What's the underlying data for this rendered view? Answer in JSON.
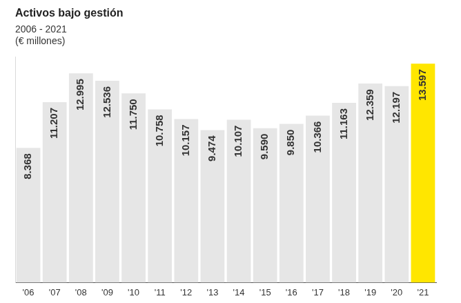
{
  "chart_data": {
    "type": "bar",
    "title": "Activos bajo gestión",
    "subtitle": [
      "2006 - 2021",
      "(€ millones)"
    ],
    "categories": [
      "'06",
      "'07",
      "'08",
      "'09",
      "'10",
      "'11",
      "'12",
      "'13",
      "'14",
      "'15",
      "'16",
      "'17",
      "'18",
      "'19",
      "'20",
      "'21"
    ],
    "values": [
      8368,
      11207,
      12995,
      12536,
      11750,
      10758,
      10157,
      9474,
      10107,
      9590,
      9850,
      10366,
      11163,
      12359,
      12197,
      13597
    ],
    "value_labels": [
      "8.368",
      "11.207",
      "12.995",
      "12.536",
      "11.750",
      "10.758",
      "10.157",
      "9.474",
      "10.107",
      "9.590",
      "9.850",
      "10.366",
      "11.163",
      "12.359",
      "12.197",
      "13.597"
    ],
    "colors": [
      "#e6e6e6",
      "#e6e6e6",
      "#e6e6e6",
      "#e6e6e6",
      "#e6e6e6",
      "#e6e6e6",
      "#e6e6e6",
      "#e6e6e6",
      "#e6e6e6",
      "#e6e6e6",
      "#e6e6e6",
      "#e6e6e6",
      "#e6e6e6",
      "#e6e6e6",
      "#e6e6e6",
      "#ffe600"
    ],
    "ylim": [
      0,
      14000
    ],
    "grid": false,
    "data_labels": true,
    "tick_labels": "x"
  }
}
